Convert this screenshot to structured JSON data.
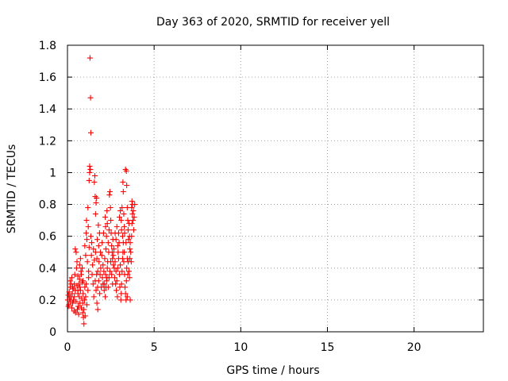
{
  "chart_data": {
    "type": "scatter",
    "title": "Day 363 of 2020, SRMTID for receiver yell",
    "xlabel": "GPS time / hours",
    "ylabel": "SRMTID / TECUs",
    "xlim": [
      0,
      24
    ],
    "ylim": [
      0,
      1.8
    ],
    "xticks": [
      0,
      5,
      10,
      15,
      20
    ],
    "xtick_labels": [
      "0",
      "5",
      "10",
      "15",
      "20"
    ],
    "yticks": [
      0,
      0.2,
      0.4,
      0.6,
      0.8,
      1,
      1.2,
      1.4,
      1.6,
      1.8
    ],
    "ytick_labels": [
      "0",
      "0.2",
      "0.4",
      "0.6",
      "0.8",
      "1",
      "1.2",
      "1.4",
      "1.6",
      "1.8"
    ],
    "grid": true,
    "marker": "+",
    "color": "#ff0000",
    "series": [
      {
        "name": "SRMTID",
        "points": [
          [
            0.02,
            0.2
          ],
          [
            0.05,
            0.23
          ],
          [
            0.08,
            0.17
          ],
          [
            0.1,
            0.25
          ],
          [
            0.12,
            0.21
          ],
          [
            0.15,
            0.28
          ],
          [
            0.18,
            0.19
          ],
          [
            0.2,
            0.22
          ],
          [
            0.22,
            0.3
          ],
          [
            0.25,
            0.15
          ],
          [
            0.28,
            0.24
          ],
          [
            0.3,
            0.18
          ],
          [
            0.33,
            0.27
          ],
          [
            0.35,
            0.2
          ],
          [
            0.38,
            0.13
          ],
          [
            0.4,
            0.22
          ],
          [
            0.42,
            0.36
          ],
          [
            0.45,
            0.26
          ],
          [
            0.47,
            0.12
          ],
          [
            0.5,
            0.19
          ],
          [
            0.52,
            0.4
          ],
          [
            0.55,
            0.29
          ],
          [
            0.57,
            0.14
          ],
          [
            0.6,
            0.24
          ],
          [
            0.62,
            0.16
          ],
          [
            0.65,
            0.11
          ],
          [
            0.68,
            0.22
          ],
          [
            0.7,
            0.33
          ],
          [
            0.72,
            0.18
          ],
          [
            0.75,
            0.26
          ],
          [
            0.78,
            0.38
          ],
          [
            0.8,
            0.15
          ],
          [
            0.82,
            0.21
          ],
          [
            0.85,
            0.31
          ],
          [
            0.88,
            0.12
          ],
          [
            0.9,
            0.24
          ],
          [
            0.92,
            0.09
          ],
          [
            0.95,
            0.05
          ],
          [
            0.98,
            0.2
          ],
          [
            1.0,
            0.28
          ],
          [
            0.45,
            0.52
          ],
          [
            0.5,
            0.5
          ],
          [
            0.55,
            0.44
          ],
          [
            0.6,
            0.35
          ],
          [
            0.65,
            0.3
          ],
          [
            0.7,
            0.42
          ],
          [
            0.75,
            0.46
          ],
          [
            0.8,
            0.36
          ],
          [
            0.85,
            0.4
          ],
          [
            0.9,
            0.32
          ],
          [
            1.0,
            0.54
          ],
          [
            1.05,
            0.48
          ],
          [
            1.08,
            0.62
          ],
          [
            1.1,
            0.7
          ],
          [
            1.12,
            0.58
          ],
          [
            1.15,
            0.44
          ],
          [
            1.18,
            0.78
          ],
          [
            1.2,
            0.66
          ],
          [
            1.22,
            0.34
          ],
          [
            1.25,
            0.53
          ],
          [
            1.05,
            0.22
          ],
          [
            1.08,
            0.3
          ],
          [
            1.12,
            0.17
          ],
          [
            1.18,
            0.26
          ],
          [
            1.22,
            0.38
          ],
          [
            1.25,
            0.95
          ],
          [
            1.28,
            1.0
          ],
          [
            1.28,
            1.04
          ],
          [
            1.32,
            1.02
          ],
          [
            1.35,
            0.6
          ],
          [
            1.3,
            1.72
          ],
          [
            1.33,
            1.47
          ],
          [
            1.35,
            1.25
          ],
          [
            1.38,
            0.48
          ],
          [
            1.4,
            0.56
          ],
          [
            1.42,
            0.36
          ],
          [
            1.45,
            0.42
          ],
          [
            1.48,
            0.3
          ],
          [
            1.5,
            0.52
          ],
          [
            1.52,
            0.22
          ],
          [
            1.55,
            0.94
          ],
          [
            1.58,
            0.98
          ],
          [
            1.6,
            0.85
          ],
          [
            1.62,
            0.74
          ],
          [
            1.65,
            0.81
          ],
          [
            1.68,
            0.84
          ],
          [
            1.7,
            0.46
          ],
          [
            1.72,
            0.58
          ],
          [
            1.75,
            0.38
          ],
          [
            1.78,
            0.67
          ],
          [
            1.55,
            0.45
          ],
          [
            1.6,
            0.32
          ],
          [
            1.65,
            0.26
          ],
          [
            1.7,
            0.18
          ],
          [
            1.75,
            0.14
          ],
          [
            1.8,
            0.54
          ],
          [
            1.82,
            0.44
          ],
          [
            1.85,
            0.62
          ],
          [
            1.88,
            0.36
          ],
          [
            1.9,
            0.5
          ],
          [
            1.92,
            0.4
          ],
          [
            1.95,
            0.28
          ],
          [
            1.98,
            0.48
          ],
          [
            2.0,
            0.56
          ],
          [
            2.02,
            0.34
          ],
          [
            2.05,
            0.42
          ],
          [
            2.08,
            0.62
          ],
          [
            2.1,
            0.38
          ],
          [
            2.12,
            0.3
          ],
          [
            2.15,
            0.46
          ],
          [
            2.18,
            0.72
          ],
          [
            2.2,
            0.66
          ],
          [
            2.22,
            0.52
          ],
          [
            2.25,
            0.6
          ],
          [
            2.28,
            0.76
          ],
          [
            2.3,
            0.68
          ],
          [
            2.32,
            0.44
          ],
          [
            2.35,
            0.56
          ],
          [
            2.38,
            0.5
          ],
          [
            2.4,
            0.64
          ],
          [
            2.42,
            0.86
          ],
          [
            2.45,
            0.88
          ],
          [
            2.48,
            0.78
          ],
          [
            2.5,
            0.7
          ],
          [
            2.52,
            0.62
          ],
          [
            2.55,
            0.54
          ],
          [
            2.58,
            0.5
          ],
          [
            2.6,
            0.46
          ],
          [
            2.62,
            0.58
          ],
          [
            2.65,
            0.42
          ],
          [
            2.2,
            0.36
          ],
          [
            2.25,
            0.32
          ],
          [
            2.3,
            0.4
          ],
          [
            2.35,
            0.28
          ],
          [
            2.4,
            0.34
          ],
          [
            2.45,
            0.38
          ],
          [
            2.5,
            0.44
          ],
          [
            2.55,
            0.36
          ],
          [
            2.6,
            0.3
          ],
          [
            2.65,
            0.48
          ],
          [
            2.68,
            0.52
          ],
          [
            2.7,
            0.4
          ],
          [
            2.72,
            0.34
          ],
          [
            2.75,
            0.44
          ],
          [
            2.78,
            0.3
          ],
          [
            2.8,
            0.38
          ],
          [
            2.82,
            0.26
          ],
          [
            2.85,
            0.32
          ],
          [
            2.88,
            0.22
          ],
          [
            2.9,
            0.4
          ],
          [
            2.92,
            0.5
          ],
          [
            2.95,
            0.46
          ],
          [
            2.98,
            0.56
          ],
          [
            3.0,
            0.36
          ],
          [
            3.02,
            0.28
          ],
          [
            3.05,
            0.42
          ],
          [
            3.08,
            0.2
          ],
          [
            3.1,
            0.24
          ],
          [
            3.12,
            0.3
          ],
          [
            3.15,
            0.38
          ],
          [
            3.0,
            0.72
          ],
          [
            3.05,
            0.76
          ],
          [
            3.1,
            0.7
          ],
          [
            3.12,
            0.64
          ],
          [
            3.15,
            0.78
          ],
          [
            3.18,
            0.6
          ],
          [
            3.2,
            0.94
          ],
          [
            3.22,
            0.88
          ],
          [
            3.25,
            0.74
          ],
          [
            3.28,
            0.66
          ],
          [
            3.2,
            0.5
          ],
          [
            3.25,
            0.44
          ],
          [
            3.3,
            0.36
          ],
          [
            3.32,
            0.28
          ],
          [
            3.35,
            0.24
          ],
          [
            3.38,
            0.2
          ],
          [
            3.4,
            0.32
          ],
          [
            3.42,
            0.4
          ],
          [
            3.45,
            0.46
          ],
          [
            3.48,
            0.36
          ],
          [
            3.35,
            1.02
          ],
          [
            3.4,
            1.01
          ],
          [
            3.42,
            0.92
          ],
          [
            3.45,
            0.78
          ],
          [
            3.48,
            0.7
          ],
          [
            3.5,
            0.64
          ],
          [
            3.52,
            0.58
          ],
          [
            3.55,
            0.68
          ],
          [
            3.58,
            0.6
          ],
          [
            3.6,
            0.52
          ],
          [
            3.5,
            0.44
          ],
          [
            3.55,
            0.38
          ],
          [
            3.58,
            0.34
          ],
          [
            3.6,
            0.46
          ],
          [
            3.62,
            0.56
          ],
          [
            3.65,
            0.5
          ],
          [
            3.68,
            0.44
          ],
          [
            3.7,
            0.6
          ],
          [
            3.72,
            0.68
          ],
          [
            3.75,
            0.74
          ],
          [
            3.7,
            0.78
          ],
          [
            3.72,
            0.82
          ],
          [
            3.75,
            0.8
          ],
          [
            3.78,
            0.7
          ],
          [
            3.8,
            0.76
          ],
          [
            3.82,
            0.64
          ],
          [
            3.85,
            0.72
          ],
          [
            3.88,
            0.8
          ],
          [
            3.62,
            0.2
          ],
          [
            3.45,
            0.22
          ],
          [
            0.6,
            0.26
          ],
          [
            0.72,
            0.28
          ],
          [
            0.88,
            0.18
          ],
          [
            0.95,
            0.14
          ],
          [
            1.02,
            0.1
          ],
          [
            0.3,
            0.28
          ],
          [
            0.15,
            0.32
          ],
          [
            0.05,
            0.16
          ],
          [
            0.25,
            0.34
          ],
          [
            0.4,
            0.3
          ],
          [
            1.62,
            0.5
          ],
          [
            1.68,
            0.36
          ],
          [
            1.74,
            0.28
          ],
          [
            1.8,
            0.32
          ],
          [
            1.86,
            0.24
          ],
          [
            2.05,
            0.3
          ],
          [
            2.12,
            0.26
          ],
          [
            2.18,
            0.22
          ],
          [
            2.22,
            0.28
          ],
          [
            2.28,
            0.34
          ],
          [
            2.75,
            0.62
          ],
          [
            2.8,
            0.58
          ],
          [
            2.85,
            0.66
          ],
          [
            2.9,
            0.54
          ],
          [
            2.95,
            0.62
          ],
          [
            3.18,
            0.46
          ],
          [
            3.22,
            0.56
          ],
          [
            3.28,
            0.5
          ],
          [
            3.3,
            0.62
          ],
          [
            3.38,
            0.56
          ]
        ]
      }
    ]
  }
}
